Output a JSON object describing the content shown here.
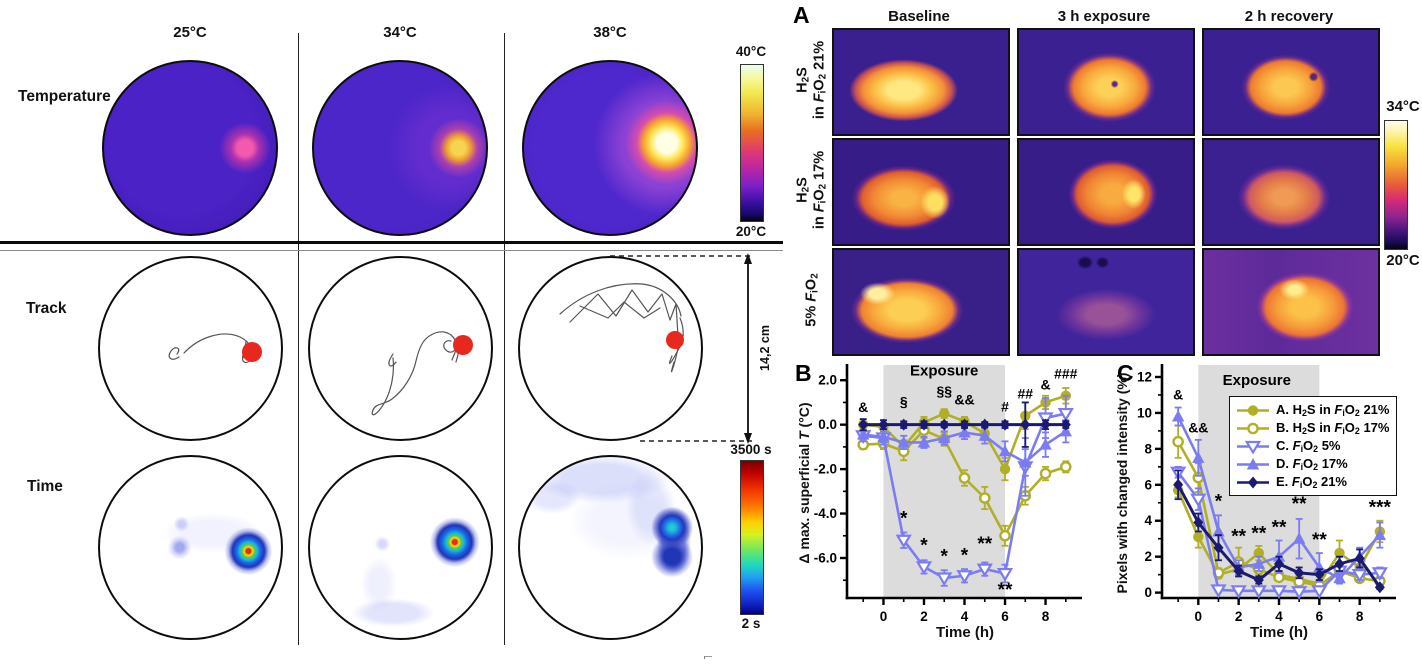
{
  "colors": {
    "olive": "#b1af25",
    "periwinkle": "#7b7cf2",
    "navy": "#1a1a72",
    "exposure_fill": "#dcdcdc",
    "red_dot": "#e8281e",
    "track_line": "#555555"
  },
  "left_panel": {
    "row_labels": [
      "Temperature",
      "Track",
      "Time"
    ],
    "column_labels": [
      "25°C",
      "34°C",
      "38°C"
    ],
    "temp_colorbar": {
      "top": "40°C",
      "bottom": "20°C"
    },
    "time_colorbar": {
      "top": "3500 s",
      "bottom": "2 s"
    },
    "diameter_annotation": "14,2 cm"
  },
  "panel_a": {
    "label": "A",
    "column_labels": [
      "Baseline",
      "3 h exposure",
      "2 h recovery"
    ],
    "row_labels": [
      [
        "H2S",
        "in FiO2 21%"
      ],
      [
        "H2S",
        "in FiO2 17%"
      ],
      [
        "5% FiO2"
      ]
    ],
    "colorbar": {
      "top": "34°C",
      "bottom": "20°C"
    }
  },
  "chart_data": [
    {
      "type": "line",
      "panel_label": "B",
      "xlabel": "Time (h)",
      "ylabel": "Δ max. superficial T (°C)",
      "x": [
        -1,
        0,
        1,
        2,
        3,
        4,
        5,
        6,
        7,
        8,
        9
      ],
      "xlim": [
        -1.8,
        9.8
      ],
      "ylim": [
        -7.8,
        2.55
      ],
      "x_ticks": [
        0,
        2,
        4,
        6,
        8
      ],
      "x_minor": [
        -1,
        1,
        3,
        5,
        7,
        9
      ],
      "y_ticks": [
        {
          "v": 2,
          "label": "2.0"
        },
        {
          "v": 0,
          "label": "0.0"
        },
        {
          "v": -2,
          "label": "-2.0"
        },
        {
          "v": -4,
          "label": "-4.0"
        },
        {
          "v": -6,
          "label": "-6.0"
        }
      ],
      "y_minor": [
        1,
        -1,
        -3,
        -5,
        -7
      ],
      "exposure": {
        "from": 0,
        "to": 6,
        "label": "Exposure",
        "label_x": 3,
        "label_y": 2.22
      },
      "series": [
        {
          "name": "A. H2S in FiO2 21%",
          "color": "#b1af25",
          "marker": "circle-filled",
          "values": [
            0,
            -0.1,
            -1,
            0.1,
            0.5,
            0.15,
            -0.4,
            -2,
            0.4,
            1,
            1.3
          ],
          "err": [
            0.15,
            0.3,
            0.3,
            0.25,
            0.2,
            0.2,
            0.3,
            0.5,
            0.6,
            0.3,
            0.35
          ]
        },
        {
          "name": "B. H2S in FiO2 17%",
          "color": "#b1af25",
          "marker": "circle-open",
          "values": [
            -0.9,
            -0.85,
            -1.2,
            -0.25,
            -0.65,
            -2.4,
            -3.3,
            -5,
            -3.2,
            -2.2,
            -1.9
          ],
          "err": [
            0.2,
            0.25,
            0.4,
            0.35,
            0.3,
            0.35,
            0.5,
            0.45,
            0.4,
            0.3,
            0.25
          ]
        },
        {
          "name": "C. FiO2 5%",
          "color": "#7b7cf2",
          "marker": "triangle-down-open",
          "values": [
            -0.5,
            -0.6,
            -5.2,
            -6.4,
            -6.9,
            -6.8,
            -6.5,
            -6.7,
            -1.9,
            0.3,
            0.5
          ],
          "err": [
            0.25,
            0.3,
            0.35,
            0.3,
            0.35,
            0.3,
            0.3,
            0.4,
            1.3,
            0.9,
            0.8
          ]
        },
        {
          "name": "D. FiO2 17%",
          "color": "#7b7cf2",
          "marker": "triangle-up-filled",
          "values": [
            -0.45,
            -0.55,
            -0.8,
            -0.8,
            -0.6,
            -0.35,
            -0.5,
            -1.2,
            -1.7,
            -0.9,
            -0.3
          ],
          "err": [
            0.2,
            0.25,
            0.3,
            0.25,
            0.3,
            0.3,
            0.35,
            0.45,
            0.6,
            0.55,
            0.5
          ]
        },
        {
          "name": "E. FiO2 21%",
          "color": "#1a1a72",
          "marker": "diamond-filled",
          "values": [
            0,
            0,
            0,
            0,
            0,
            0,
            0,
            0,
            0,
            0,
            0
          ],
          "err": [
            0.25,
            0.2,
            0.15,
            0.15,
            0.12,
            0.15,
            0.12,
            0.15,
            1.0,
            0.2,
            0.15
          ]
        }
      ],
      "annotations": [
        {
          "x": -1,
          "y": 0.58,
          "text": "&"
        },
        {
          "x": 1,
          "y": 0.82,
          "text": "§"
        },
        {
          "x": 3,
          "y": 1.28,
          "text": "§§"
        },
        {
          "x": 4,
          "y": 0.9,
          "text": "&&"
        },
        {
          "x": 6,
          "y": 0.6,
          "text": "#"
        },
        {
          "x": 7,
          "y": 1.18,
          "text": "##"
        },
        {
          "x": 8,
          "y": 1.58,
          "text": "&"
        },
        {
          "x": 9,
          "y": 2.08,
          "text": "###"
        },
        {
          "x": 1,
          "y": -4.5,
          "text": "*"
        },
        {
          "x": 2,
          "y": -5.7,
          "text": "*"
        },
        {
          "x": 3,
          "y": -6.2,
          "text": "*"
        },
        {
          "x": 4,
          "y": -6.15,
          "text": "*"
        },
        {
          "x": 5,
          "y": -5.65,
          "text": "**"
        },
        {
          "x": 6,
          "y": -7.7,
          "text": "**"
        }
      ]
    },
    {
      "type": "line",
      "panel_label": "C",
      "xlabel": "Time (h)",
      "ylabel": "Pixels with changed intensity (%)",
      "x": [
        -1,
        0,
        1,
        2,
        3,
        4,
        5,
        6,
        7,
        8,
        9
      ],
      "xlim": [
        -1.8,
        9.8
      ],
      "ylim": [
        -0.3,
        12.5
      ],
      "x_ticks": [
        0,
        2,
        4,
        6,
        8
      ],
      "x_minor": [
        -1,
        1,
        3,
        5,
        7,
        9
      ],
      "y_ticks": [
        {
          "v": 0,
          "label": "0"
        },
        {
          "v": 2,
          "label": "2"
        },
        {
          "v": 4,
          "label": "4"
        },
        {
          "v": 6,
          "label": "6"
        },
        {
          "v": 8,
          "label": "8"
        },
        {
          "v": 10,
          "label": "10"
        },
        {
          "v": 12,
          "label": "12"
        }
      ],
      "y_minor": [
        1,
        3,
        5,
        7,
        9,
        11
      ],
      "exposure": {
        "from": 0,
        "to": 6,
        "label": "Exposure",
        "label_x": 2.9,
        "label_y": 11.55
      },
      "has_legend": true,
      "series": [
        {
          "name": "A. H2S in FiO2 21%",
          "color": "#b1af25",
          "marker": "circle-filled",
          "values": [
            5.7,
            3.1,
            1.0,
            1.3,
            2.2,
            1.0,
            0.75,
            0.5,
            2.2,
            1.4,
            3.4
          ],
          "err": [
            0.4,
            0.6,
            0.2,
            0.3,
            0.4,
            0.2,
            0.2,
            0.15,
            0.7,
            0.4,
            0.6
          ]
        },
        {
          "name": "B. H2S in FiO2 17%",
          "color": "#b1af25",
          "marker": "circle-open",
          "values": [
            8.4,
            6.4,
            1.1,
            1.7,
            1.3,
            0.85,
            0.6,
            0.4,
            1.2,
            0.8,
            0.65
          ],
          "err": [
            0.9,
            0.8,
            0.25,
            0.8,
            0.3,
            0.2,
            0.15,
            0.1,
            0.3,
            0.2,
            0.2
          ]
        },
        {
          "name": "C. FiO2 5%",
          "color": "#7b7cf2",
          "marker": "triangle-down-open",
          "values": [
            6.7,
            5.2,
            0.15,
            0.1,
            0.1,
            0.1,
            0.05,
            0.1,
            1.2,
            1.0,
            1.1
          ],
          "err": [
            0.3,
            0.6,
            0.1,
            0.05,
            0.05,
            0.05,
            0.05,
            0.05,
            0.4,
            0.3,
            0.3
          ]
        },
        {
          "name": "D. FiO2 17%",
          "color": "#7b7cf2",
          "marker": "triangle-up-filled",
          "values": [
            9.8,
            7.5,
            3.4,
            1.4,
            1.6,
            2.0,
            3.0,
            1.4,
            0.8,
            2.0,
            3.2
          ],
          "err": [
            0.5,
            1.0,
            0.9,
            0.4,
            0.4,
            0.9,
            1.1,
            0.8,
            0.3,
            0.5,
            0.7
          ]
        },
        {
          "name": "E. FiO2 21%",
          "color": "#1a1a72",
          "marker": "diamond-filled",
          "values": [
            6.0,
            3.9,
            2.5,
            1.2,
            0.7,
            1.6,
            1.1,
            1.0,
            1.6,
            1.9,
            0.3
          ],
          "err": [
            0.8,
            0.5,
            0.7,
            0.3,
            0.2,
            0.4,
            0.3,
            0.3,
            0.4,
            0.5,
            0.1
          ]
        }
      ],
      "annotations": [
        {
          "x": -1,
          "y": 10.75,
          "text": "&"
        },
        {
          "x": 0,
          "y": 8.9,
          "text": "&&"
        },
        {
          "x": 1,
          "y": 4.75,
          "text": "*"
        },
        {
          "x": 2,
          "y": 2.8,
          "text": "**"
        },
        {
          "x": 3,
          "y": 2.95,
          "text": "**"
        },
        {
          "x": 4,
          "y": 3.3,
          "text": "**"
        },
        {
          "x": 5,
          "y": 4.6,
          "text": "**"
        },
        {
          "x": 6,
          "y": 2.6,
          "text": "**"
        },
        {
          "x": 9,
          "y": 4.4,
          "text": "***"
        }
      ]
    }
  ]
}
